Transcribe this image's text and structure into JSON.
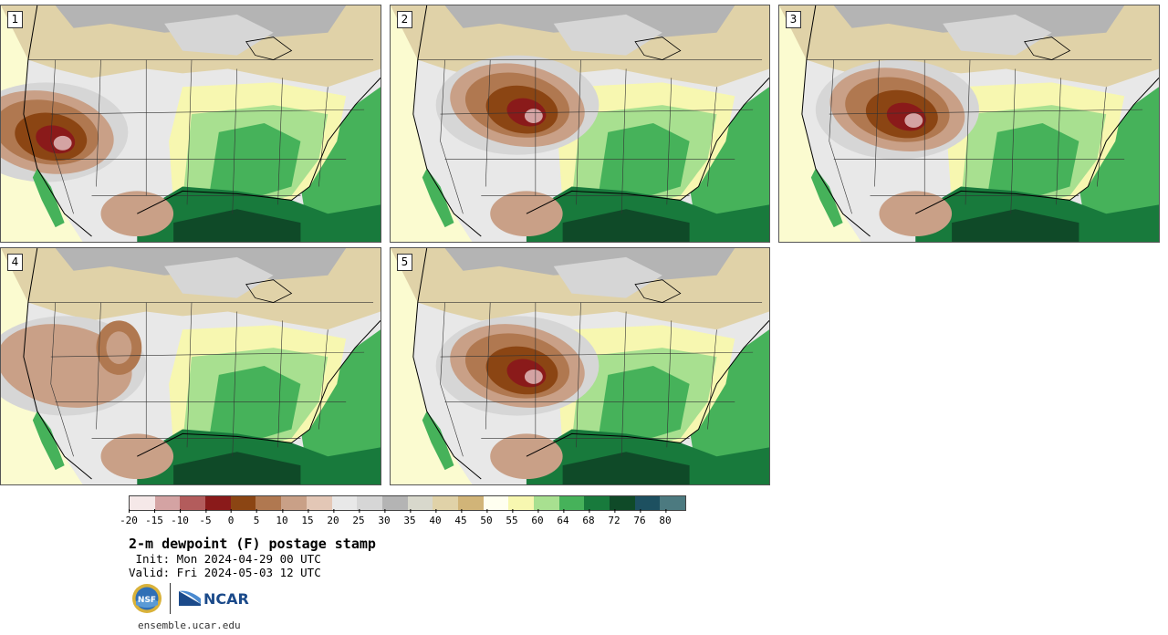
{
  "panels": [
    {
      "label": "1",
      "variant": 0
    },
    {
      "label": "2",
      "variant": 1
    },
    {
      "label": "3",
      "variant": 2
    },
    {
      "label": "4",
      "variant": 3
    },
    {
      "label": "5",
      "variant": 4
    }
  ],
  "colorbar": {
    "colors": [
      "#f5e8e8",
      "#d4a3a3",
      "#b35c5c",
      "#8a1a1a",
      "#8b4513",
      "#b07850",
      "#c9a087",
      "#e3c7b6",
      "#e8e8e8",
      "#d6d6d6",
      "#b4b4b4",
      "#d8d8cc",
      "#e0d2a8",
      "#d1b478",
      "#fffff0",
      "#f7f7b0",
      "#a8e090",
      "#46b25a",
      "#187a3c",
      "#0f4a28",
      "#1d5060",
      "#4c7a80"
    ],
    "ticks": [
      "-20",
      "-15",
      "-10",
      "-5",
      "0",
      "5",
      "10",
      "15",
      "20",
      "25",
      "30",
      "35",
      "40",
      "45",
      "50",
      "55",
      "60",
      "64",
      "68",
      "72",
      "76",
      "80"
    ]
  },
  "title": "2-m dewpoint (F) postage stamp",
  "init": " Init: Mon 2024-04-29 00 UTC",
  "valid": "Valid: Fri 2024-05-03 12 UTC",
  "logos": {
    "nsf_text": "NSF",
    "ncar_text": "NCAR"
  },
  "website": "ensemble.ucar.edu"
}
